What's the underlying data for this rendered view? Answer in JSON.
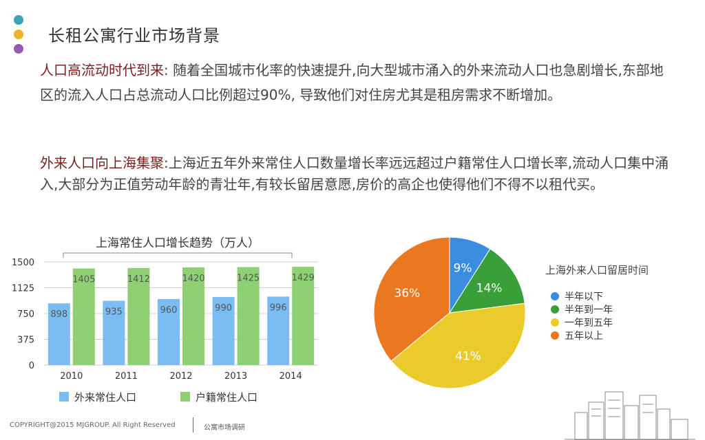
{
  "colors": {
    "dot1": "#3aa3b8",
    "dot2": "#f0b323",
    "dot3": "#9b59b6",
    "highlight": "#7a1f1f",
    "bar_outside": "#7bbcf3",
    "bar_registered": "#8fd074",
    "pie_blue": "#3b8de0",
    "pie_green": "#39a039",
    "pie_yellow": "#eacb2a",
    "pie_orange": "#ea7820"
  },
  "page": {
    "title": "长租公寓行业市场背景",
    "p1_highlight": "人口高流动时代到来",
    "p1_text": ": 随着全国城市化率的快速提升,向大型城市涌入的外来流动人口也急剧增长,东部地区的流入人口占总流动人口比例超过90%, 导致他们对住房尤其是租房需求不断增加。",
    "p2_highlight": "外来人口向上海集聚",
    "p2_text": ":上海近五年外来常住人口数量增长率远远超过户籍常住人口增长率,流动人口集中涌入,大部分为正值劳动年龄的青壮年,有较长留居意愿,房价的高企也使得他们不得不以租代买。"
  },
  "chart_data": [
    {
      "type": "bar",
      "title": "上海常住人口增长趋势（万人）",
      "categories": [
        "2010",
        "2011",
        "2012",
        "2013",
        "2014"
      ],
      "series": [
        {
          "name": "外来常住人口",
          "values": [
            898,
            935,
            960,
            990,
            996
          ]
        },
        {
          "name": "户籍常住人口",
          "values": [
            1405,
            1412,
            1420,
            1425,
            1429
          ]
        }
      ],
      "ylim": [
        0,
        1500
      ],
      "yticks": [
        0,
        375,
        750,
        1125,
        1500
      ],
      "grid": true,
      "legend": "bottom"
    },
    {
      "type": "pie",
      "title": "上海外来人口留居时间",
      "labels": [
        "半年以下",
        "半年到一年",
        "一年到五年",
        "五年以上"
      ],
      "values": [
        9,
        14,
        41,
        36
      ],
      "value_labels": [
        "9%",
        "14%",
        "41%",
        "36%"
      ],
      "legend": "right"
    }
  ],
  "footer": {
    "copyright": "COPYRIGHT@2015 MJGROUP. All Right Reserved",
    "section": "公寓市场调研"
  }
}
